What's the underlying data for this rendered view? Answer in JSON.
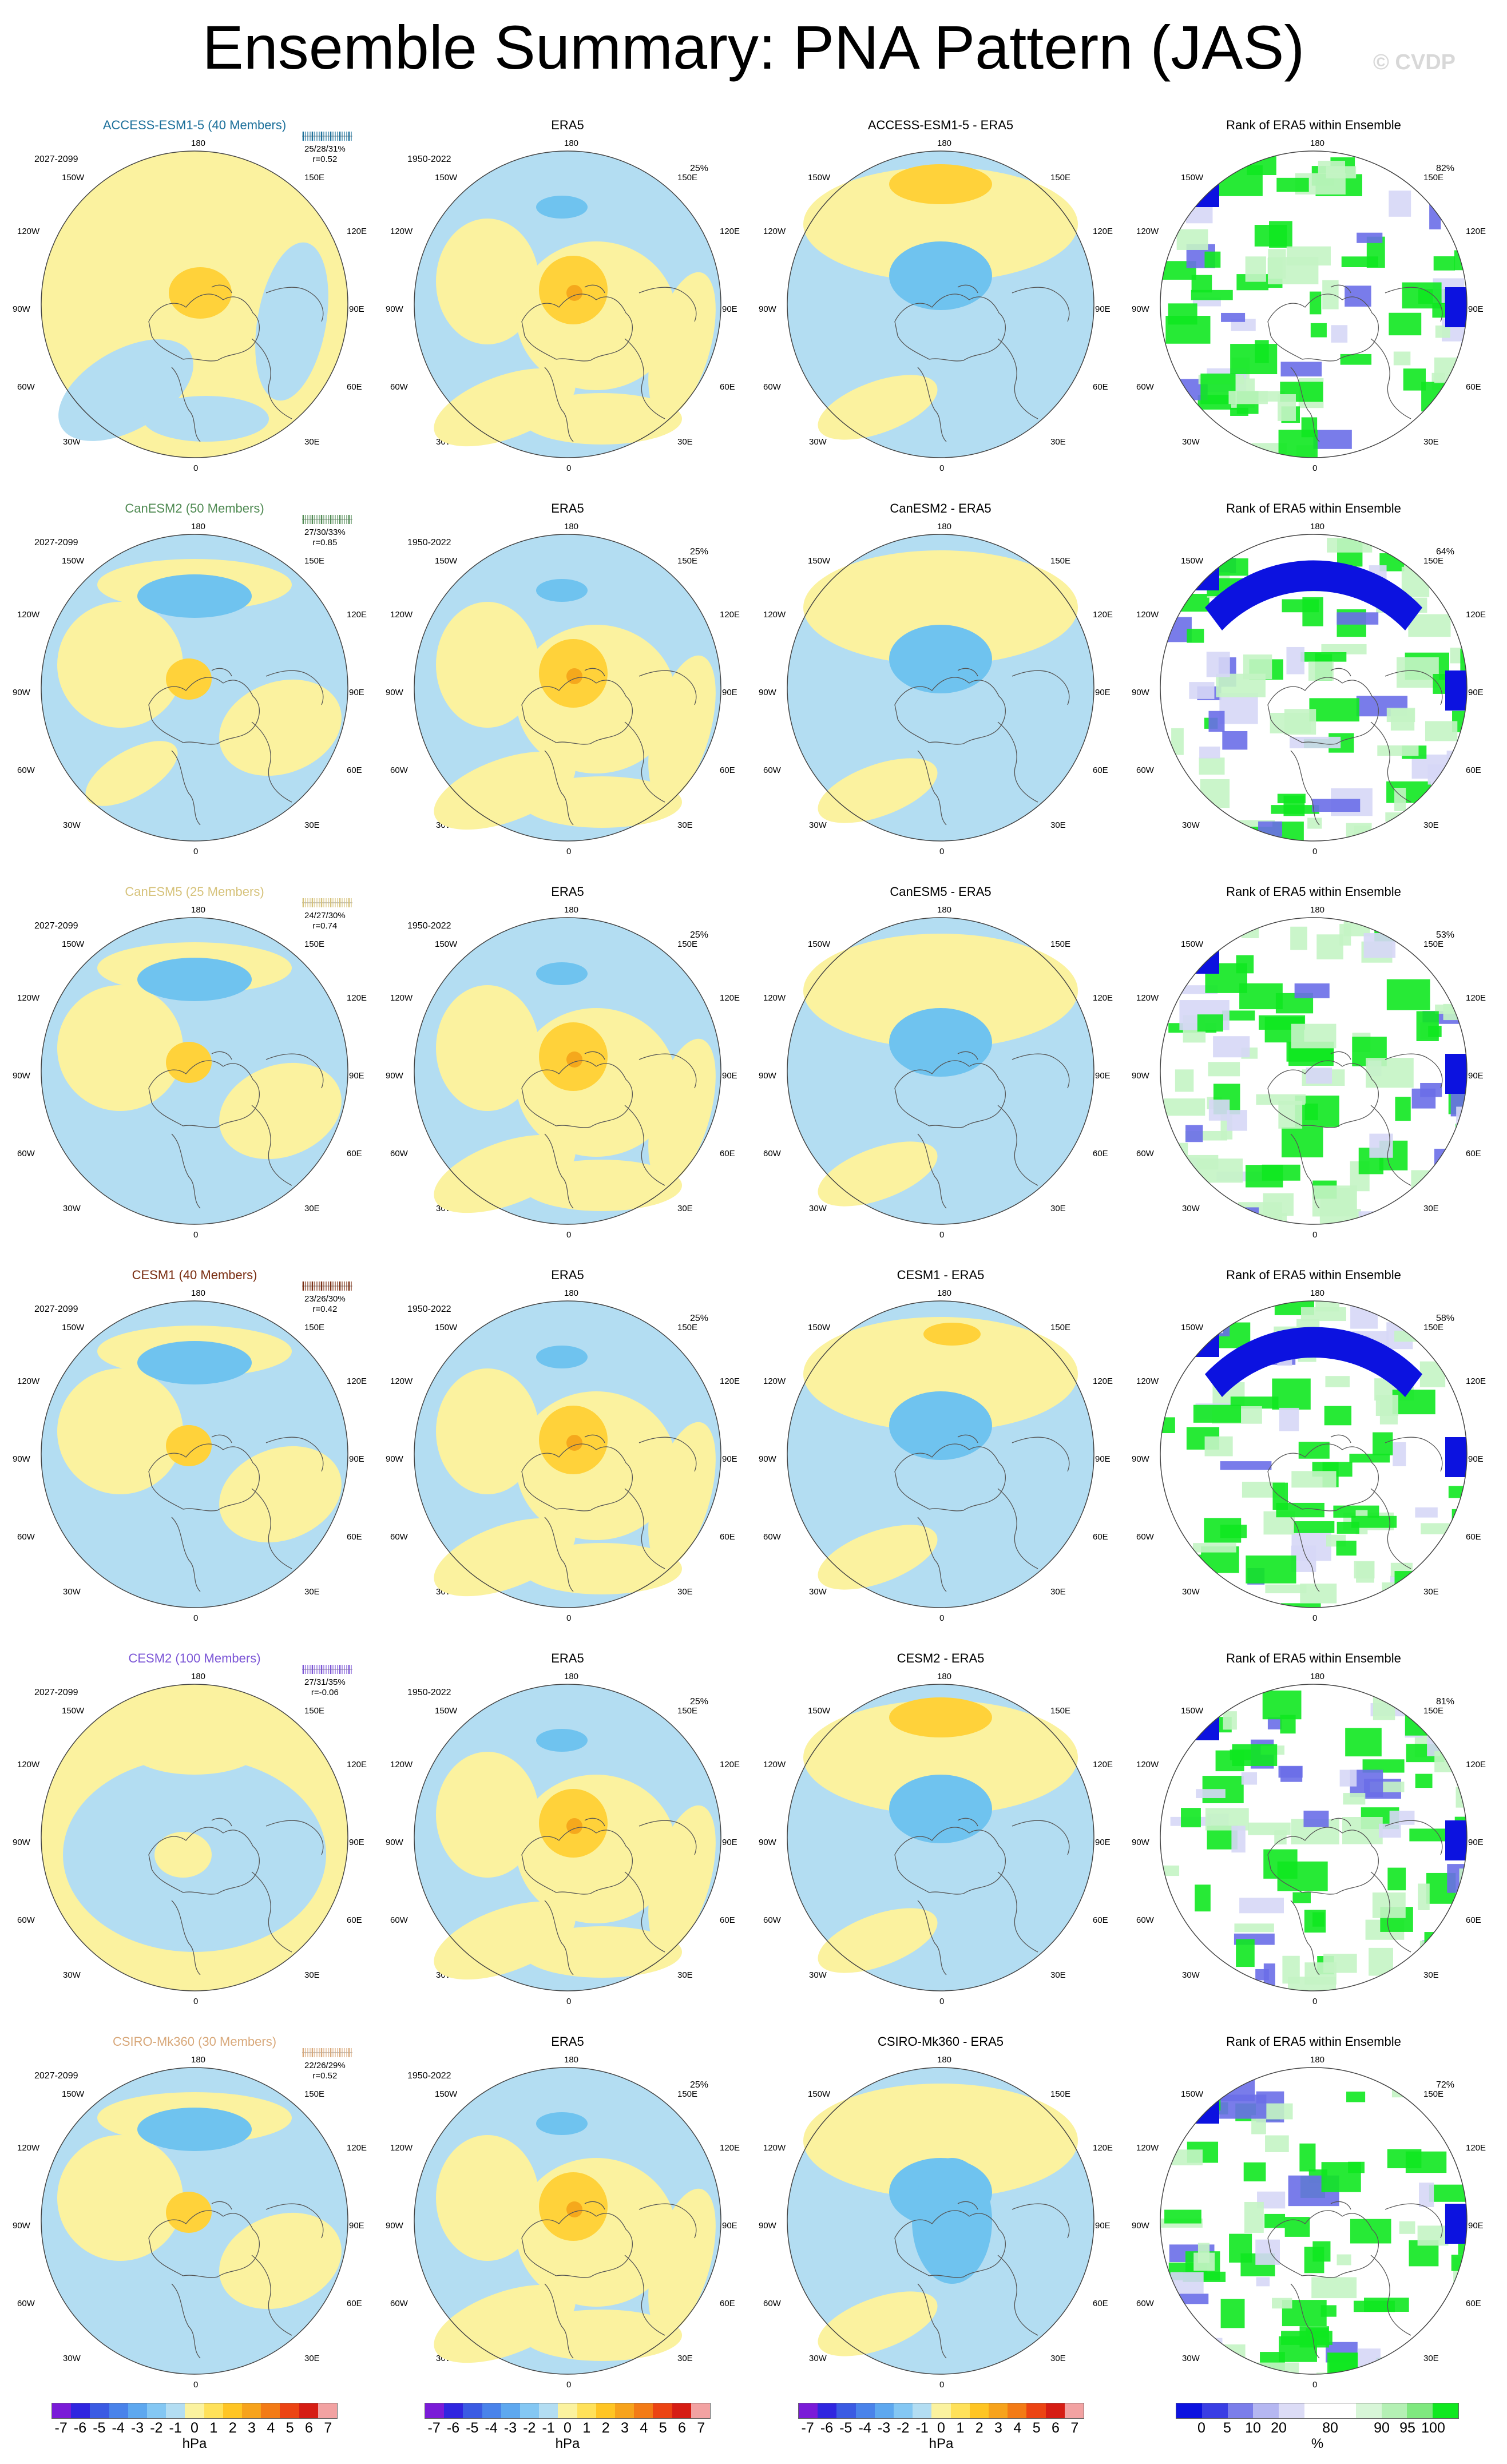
{
  "title": "Ensemble Summary: PNA Pattern (JAS)",
  "watermark": "© CVDP",
  "lon_labels": {
    "top": "180",
    "bottom": "0",
    "ul": "150W",
    "ur": "150E",
    "lu": "120W",
    "ru": "120E",
    "lm": "90W",
    "rm": "90E",
    "ll": "60W",
    "rl": "60E",
    "bl": "30W",
    "br": "30E"
  },
  "colors": {
    "light_yellow": "#fbf29f",
    "light_blue": "#b3ddf2",
    "mid_blue": "#6fc3ef",
    "yellow": "#ffd23a",
    "orange": "#f5a81c",
    "rank_blue": "#0c12e0",
    "rank_mid_blue": "#6a6ee8",
    "rank_light_blue": "#d6d7f6",
    "rank_green": "#10e820",
    "rank_light_green": "#c4f4c4"
  },
  "rows": [
    {
      "model": "ACCESS-ESM1-5 (40 Members)",
      "model_color": "#1b6f9a",
      "period": "2027-2099",
      "stats": "25/28/31%",
      "corr": "r=0.52",
      "diff_title": "ACCESS-ESM1-5 - ERA5",
      "obs_title": "ERA5",
      "obs_period": "1950-2022",
      "obs_pct": "25%",
      "rank_title": "Rank of ERA5 within Ensemble",
      "rank_pct": "82%",
      "variant": 0
    },
    {
      "model": "CanESM2 (50 Members)",
      "model_color": "#4f8a52",
      "period": "2027-2099",
      "stats": "27/30/33%",
      "corr": "r=0.85",
      "diff_title": "CanESM2 - ERA5",
      "obs_title": "ERA5",
      "obs_period": "1950-2022",
      "obs_pct": "25%",
      "rank_title": "Rank of ERA5 within Ensemble",
      "rank_pct": "64%",
      "variant": 1
    },
    {
      "model": "CanESM5 (25 Members)",
      "model_color": "#d6c27a",
      "period": "2027-2099",
      "stats": "24/27/30%",
      "corr": "r=0.74",
      "diff_title": "CanESM5 - ERA5",
      "obs_title": "ERA5",
      "obs_period": "1950-2022",
      "obs_pct": "25%",
      "rank_title": "Rank of ERA5 within Ensemble",
      "rank_pct": "53%",
      "variant": 2
    },
    {
      "model": "CESM1 (40 Members)",
      "model_color": "#7a2e12",
      "period": "2027-2099",
      "stats": "23/26/30%",
      "corr": "r=0.42",
      "diff_title": "CESM1 - ERA5",
      "obs_title": "ERA5",
      "obs_period": "1950-2022",
      "obs_pct": "25%",
      "rank_title": "Rank of ERA5 within Ensemble",
      "rank_pct": "58%",
      "variant": 3
    },
    {
      "model": "CESM2 (100 Members)",
      "model_color": "#7b55d6",
      "period": "2027-2099",
      "stats": "27/31/35%",
      "corr": "r=-0.06",
      "diff_title": "CESM2 - ERA5",
      "obs_title": "ERA5",
      "obs_period": "1950-2022",
      "obs_pct": "25%",
      "rank_title": "Rank of ERA5 within Ensemble",
      "rank_pct": "81%",
      "variant": 4
    },
    {
      "model": "CSIRO-Mk360 (30 Members)",
      "model_color": "#d8a87a",
      "period": "2027-2099",
      "stats": "22/26/29%",
      "corr": "r=0.52",
      "diff_title": "CSIRO-Mk360 - ERA5",
      "obs_title": "ERA5",
      "obs_period": "1950-2022",
      "obs_pct": "25%",
      "rank_title": "Rank of ERA5 within Ensemble",
      "rank_pct": "72%",
      "variant": 5
    }
  ],
  "colorbar_hpa": {
    "colors": [
      "#7a1bd8",
      "#3026e0",
      "#3b5be3",
      "#4a83ea",
      "#5ea8ef",
      "#84c7f3",
      "#b3ddf2",
      "#fbf29f",
      "#ffe15a",
      "#ffc524",
      "#f7a31c",
      "#f37b16",
      "#ec4413",
      "#d61d14",
      "#f2a2a2"
    ],
    "labels": [
      "-7",
      "-6",
      "-5",
      "-4",
      "-3",
      "-2",
      "-1",
      "0",
      "1",
      "2",
      "3",
      "4",
      "5",
      "6",
      "7"
    ],
    "unit": "hPa"
  },
  "colorbar_rank": {
    "colors": [
      "#0c12e0",
      "#3a3ee4",
      "#7b7eea",
      "#b5b7f1",
      "#dcdcf6",
      "#ffffff",
      "#ffffff",
      "#d8f6d8",
      "#b4f0b4",
      "#7fe87f",
      "#10e820"
    ],
    "labels": [
      "0",
      "5",
      "10",
      "20",
      "80",
      "90",
      "95",
      "100"
    ],
    "unit": "%"
  }
}
